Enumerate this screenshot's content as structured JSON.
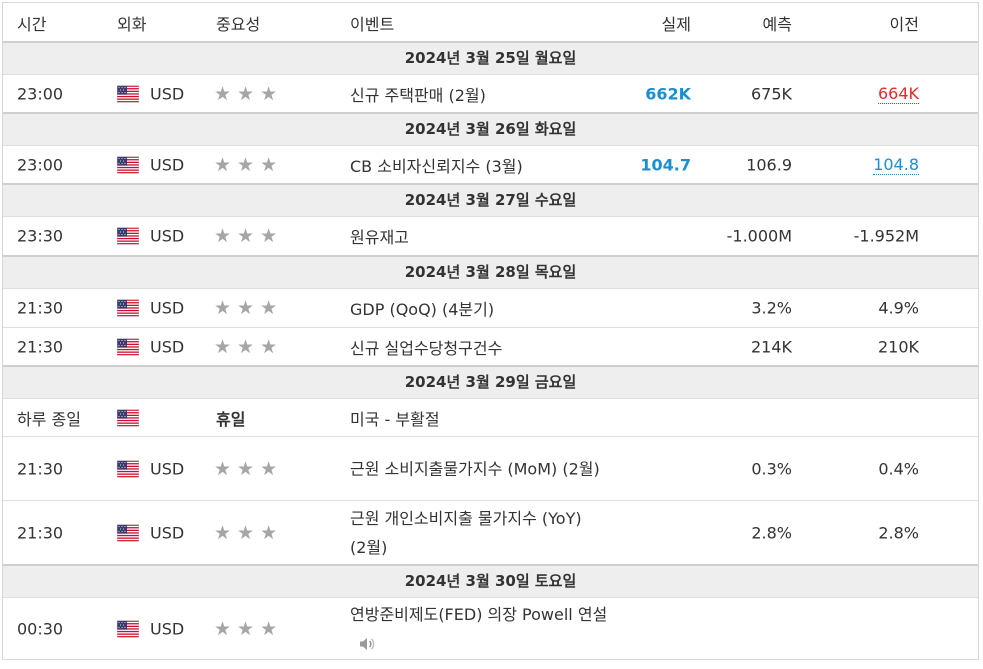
{
  "header": {
    "time": "시간",
    "currency": "외화",
    "importance": "중요성",
    "event": "이벤트",
    "actual": "실제",
    "forecast": "예측",
    "previous": "이전"
  },
  "dates": [
    "2024년 3월 25일 월요일",
    "2024년 3월 26일 화요일",
    "2024년 3월 27일 수요일",
    "2024년 3월 28일 목요일",
    "2024년 3월 29일 금요일",
    "2024년 3월 30일 토요일"
  ],
  "events": [
    {
      "time": "23:00",
      "currency": "USD",
      "event": "신규 주택판매 (2월)",
      "actual": "662K",
      "forecast": "675K",
      "previous": "664K",
      "previous_style": "red"
    },
    {
      "time": "23:00",
      "currency": "USD",
      "event": "CB 소비자신뢰지수 (3월)",
      "actual": "104.7",
      "forecast": "106.9",
      "previous": "104.8",
      "previous_style": "blue"
    },
    {
      "time": "23:30",
      "currency": "USD",
      "event": "원유재고",
      "actual": "",
      "forecast": "-1.000M",
      "previous": "-1.952M"
    },
    {
      "time": "21:30",
      "currency": "USD",
      "event": "GDP (QoQ) (4분기)",
      "actual": "",
      "forecast": "3.2%",
      "previous": "4.9%"
    },
    {
      "time": "21:30",
      "currency": "USD",
      "event": "신규 실업수당청구건수",
      "actual": "",
      "forecast": "214K",
      "previous": "210K"
    },
    {
      "time": "하루 종일",
      "currency": "",
      "importance_text": "휴일",
      "event": "미국 - 부활절"
    },
    {
      "time": "21:30",
      "currency": "USD",
      "event": "근원 소비지출물가지수 (MoM) (2월)",
      "actual": "",
      "forecast": "0.3%",
      "previous": "0.4%"
    },
    {
      "time": "21:30",
      "currency": "USD",
      "event": "근원 개인소비지출 물가지수 (YoY) (2월)",
      "actual": "",
      "forecast": "2.8%",
      "previous": "2.8%"
    },
    {
      "time": "00:30",
      "currency": "USD",
      "event": "연방준비제도(FED) 의장 Powell 연설",
      "actual": "",
      "forecast": "",
      "previous": ""
    }
  ],
  "stars": "★★★",
  "icons": {
    "flag": "us-flag-icon",
    "star": "star-icon",
    "sound": "speaker-icon"
  },
  "colors": {
    "actual": "#1a8fd1",
    "previous_worse": "#e32b2b",
    "previous_better": "#1a8fd1",
    "star": "#a6a6a6"
  }
}
